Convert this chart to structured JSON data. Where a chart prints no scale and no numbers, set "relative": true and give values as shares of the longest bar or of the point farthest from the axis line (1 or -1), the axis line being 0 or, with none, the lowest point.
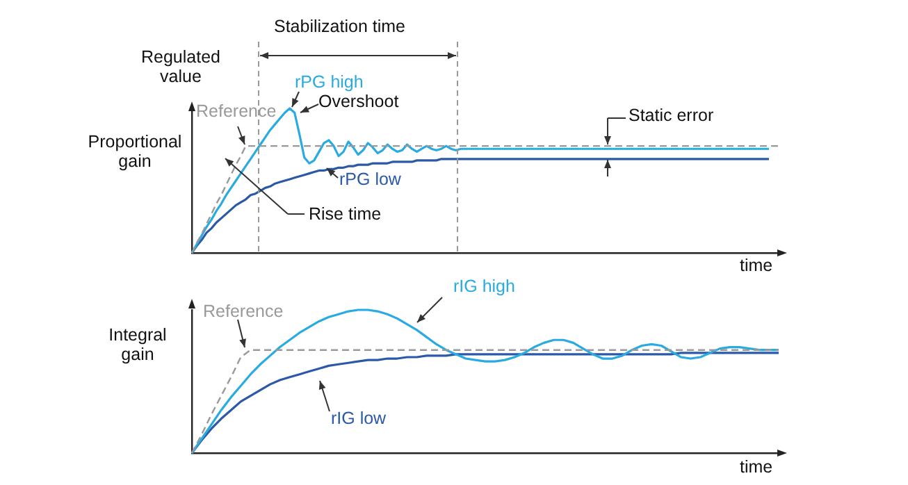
{
  "chart_data": [
    {
      "type": "line",
      "title": "Proportional gain",
      "ylabel": "Regulated value",
      "xlabel": "time",
      "relative": true,
      "marker": "none",
      "categories": [
        null,
        null,
        null,
        null,
        null,
        null,
        null,
        null,
        null,
        null,
        null,
        null,
        null,
        null,
        null,
        null,
        null,
        null,
        null,
        null,
        null,
        null,
        null,
        null,
        null,
        null,
        null,
        null,
        null,
        null,
        null,
        null,
        null,
        null,
        null,
        null,
        null,
        null,
        null,
        null,
        null,
        null,
        null,
        null,
        null,
        null,
        null,
        null,
        null,
        null,
        null,
        null,
        null,
        null,
        null,
        null,
        null,
        null,
        null,
        null,
        null,
        null,
        null,
        null,
        null,
        null,
        null,
        null,
        null,
        null,
        null,
        null,
        null,
        null,
        null,
        null,
        null,
        null,
        null,
        null,
        null,
        null,
        null,
        null,
        null,
        null,
        null,
        null,
        null,
        null,
        null,
        null,
        null,
        null,
        null,
        null,
        null,
        null,
        null,
        null,
        null,
        null,
        null,
        null,
        null,
        null,
        null,
        null,
        null,
        null,
        null,
        null,
        null,
        null,
        null,
        null,
        null,
        null,
        null,
        null,
        null
      ],
      "series": [
        {
          "name": "Reference",
          "color": "#999999",
          "line_style": "dashed",
          "values": [
            0,
            0.07,
            0.13,
            0.2,
            0.27,
            0.34,
            0.4,
            0.47,
            0.54,
            0.61,
            0.67,
            0.74,
            0.74,
            0.74,
            0.74,
            0.74,
            0.74,
            0.74,
            0.74,
            0.74,
            0.74,
            0.74,
            0.74,
            0.74,
            0.74,
            0.74,
            0.74,
            0.74,
            0.74,
            0.74,
            0.74,
            0.74,
            0.74,
            0.74,
            0.74,
            0.74,
            0.74,
            0.74,
            0.74,
            0.74,
            0.74,
            0.74,
            0.74,
            0.74,
            0.74,
            0.74,
            0.74,
            0.74,
            0.74,
            0.74,
            0.74,
            0.74,
            0.74,
            0.74,
            0.74,
            0.74,
            0.74,
            0.74,
            0.74,
            0.74,
            0.74,
            0.74,
            0.74,
            0.74,
            0.74,
            0.74,
            0.74,
            0.74,
            0.74,
            0.74,
            0.74,
            0.74,
            0.74,
            0.74,
            0.74,
            0.74,
            0.74,
            0.74,
            0.74,
            0.74,
            0.74,
            0.74,
            0.74,
            0.74,
            0.74,
            0.74,
            0.74,
            0.74,
            0.74,
            0.74,
            0.74,
            0.74,
            0.74,
            0.74,
            0.74,
            0.74,
            0.74,
            0.74,
            0.74,
            0.74,
            0.74,
            0.74,
            0.74,
            0.74,
            0.74,
            0.74,
            0.74,
            0.74,
            0.74,
            0.74,
            0.74,
            0.74,
            0.74,
            0.74,
            0.74,
            0.74,
            0.74,
            0.74,
            0.74,
            0.74,
            0.74
          ]
        },
        {
          "name": "rPG high",
          "color": "#29abe2",
          "line_style": "solid",
          "values": [
            0,
            0.06,
            0.12,
            0.18,
            0.23,
            0.29,
            0.34,
            0.4,
            0.45,
            0.5,
            0.55,
            0.6,
            0.65,
            0.7,
            0.75,
            0.8,
            0.85,
            0.89,
            0.93,
            0.97,
            1,
            0.97,
            0.82,
            0.66,
            0.62,
            0.64,
            0.7,
            0.76,
            0.78,
            0.74,
            0.67,
            0.7,
            0.77,
            0.73,
            0.68,
            0.71,
            0.76,
            0.73,
            0.69,
            0.71,
            0.75,
            0.72,
            0.7,
            0.71,
            0.75,
            0.72,
            0.7,
            0.72,
            0.74,
            0.72,
            0.71,
            0.72,
            0.74,
            0.72,
            0.71,
            0.72,
            0.72,
            0.72,
            0.72,
            0.72,
            0.72,
            0.72,
            0.72,
            0.72,
            0.72,
            0.72,
            0.72,
            0.72,
            0.72,
            0.72,
            0.72,
            0.72,
            0.72,
            0.72,
            0.72,
            0.72,
            0.72,
            0.72,
            0.72,
            0.72,
            0.72,
            0.72,
            0.72,
            0.72,
            0.72,
            0.72,
            0.72,
            0.72,
            0.72,
            0.72,
            0.72,
            0.72,
            0.72,
            0.72,
            0.72,
            0.72,
            0.72,
            0.72,
            0.72,
            0.72,
            0.72,
            0.72,
            0.72,
            0.72,
            0.72,
            0.72,
            0.72,
            0.72,
            0.72,
            0.72,
            0.72,
            0.72,
            0.72,
            0.72,
            0.72,
            0.72,
            0.72,
            0.72,
            0.72,
            null,
            null
          ]
        },
        {
          "name": "rPG low",
          "color": "#2b59a8",
          "line_style": "solid",
          "values": [
            0,
            0.05,
            0.09,
            0.14,
            0.17,
            0.21,
            0.24,
            0.27,
            0.3,
            0.33,
            0.35,
            0.37,
            0.4,
            0.41,
            0.43,
            0.45,
            0.46,
            0.48,
            0.49,
            0.5,
            0.51,
            0.52,
            0.53,
            0.54,
            0.55,
            0.56,
            0.57,
            0.57,
            0.58,
            0.58,
            0.59,
            0.59,
            0.6,
            0.6,
            0.61,
            0.61,
            0.61,
            0.62,
            0.62,
            0.62,
            0.62,
            0.63,
            0.63,
            0.63,
            0.63,
            0.63,
            0.64,
            0.64,
            0.64,
            0.64,
            0.64,
            0.65,
            0.65,
            0.65,
            0.65,
            0.65,
            0.65,
            0.65,
            0.65,
            0.65,
            0.65,
            0.65,
            0.65,
            0.65,
            0.65,
            0.65,
            0.65,
            0.65,
            0.65,
            0.65,
            0.65,
            0.65,
            0.65,
            0.65,
            0.65,
            0.65,
            0.65,
            0.65,
            0.65,
            0.65,
            0.65,
            0.65,
            0.65,
            0.65,
            0.65,
            0.65,
            0.65,
            0.65,
            0.65,
            0.65,
            0.65,
            0.65,
            0.65,
            0.65,
            0.65,
            0.65,
            0.65,
            0.65,
            0.65,
            0.65,
            0.65,
            0.65,
            0.65,
            0.65,
            0.65,
            0.65,
            0.65,
            0.65,
            0.65,
            0.65,
            0.65,
            0.65,
            0.65,
            0.65,
            0.65,
            0.65,
            0.65,
            0.65,
            0.65,
            null,
            null
          ]
        }
      ],
      "annotations": [
        "Stabilization time",
        "Overshoot",
        "Rise time",
        "Static error"
      ]
    },
    {
      "type": "line",
      "title": "Integral gain",
      "xlabel": "time",
      "relative": true,
      "marker": "none",
      "categories": [
        null,
        null,
        null,
        null,
        null,
        null,
        null,
        null,
        null,
        null,
        null,
        null,
        null,
        null,
        null,
        null,
        null,
        null,
        null,
        null,
        null,
        null,
        null,
        null,
        null,
        null,
        null,
        null,
        null,
        null,
        null,
        null,
        null,
        null,
        null,
        null,
        null,
        null,
        null,
        null,
        null,
        null,
        null,
        null,
        null,
        null,
        null,
        null,
        null,
        null,
        null,
        null,
        null,
        null,
        null,
        null,
        null,
        null,
        null,
        null,
        null
      ],
      "series": [
        {
          "name": "Reference",
          "color": "#999999",
          "line_style": "dashed",
          "values": [
            0,
            0.13,
            0.27,
            0.4,
            0.53,
            0.67,
            0.72,
            0.72,
            0.72,
            0.72,
            0.72,
            0.72,
            0.72,
            0.72,
            0.72,
            0.72,
            0.72,
            0.72,
            0.72,
            0.72,
            0.72,
            0.72,
            0.72,
            0.72,
            0.72,
            0.72,
            0.72,
            0.72,
            0.72,
            0.72,
            0.72,
            0.72,
            0.72,
            0.72,
            0.72,
            0.72,
            0.72,
            0.72,
            0.72,
            0.72,
            0.72,
            0.72,
            0.72,
            0.72,
            0.72,
            0.72,
            0.72,
            0.72,
            0.72,
            0.72,
            0.72,
            0.72,
            0.72,
            0.72,
            0.72,
            0.72,
            0.72,
            0.72,
            0.72,
            0.72,
            0.72
          ]
        },
        {
          "name": "rIG high",
          "color": "#29abe2",
          "line_style": "solid",
          "values": [
            0,
            0.1,
            0.2,
            0.3,
            0.39,
            0.47,
            0.55,
            0.62,
            0.68,
            0.74,
            0.79,
            0.84,
            0.88,
            0.92,
            0.95,
            0.97,
            0.99,
            1,
            1,
            0.99,
            0.97,
            0.94,
            0.9,
            0.86,
            0.81,
            0.76,
            0.72,
            0.69,
            0.66,
            0.65,
            0.64,
            0.64,
            0.65,
            0.67,
            0.7,
            0.74,
            0.77,
            0.79,
            0.79,
            0.77,
            0.73,
            0.69,
            0.66,
            0.66,
            0.68,
            0.72,
            0.75,
            0.76,
            0.75,
            0.71,
            0.67,
            0.66,
            0.67,
            0.7,
            0.73,
            0.74,
            0.74,
            0.73,
            0.72,
            0.72,
            0.72
          ]
        },
        {
          "name": "rIG low",
          "color": "#2b59a8",
          "line_style": "solid",
          "values": [
            0,
            0.09,
            0.17,
            0.24,
            0.3,
            0.36,
            0.4,
            0.44,
            0.48,
            0.51,
            0.53,
            0.55,
            0.57,
            0.59,
            0.61,
            0.62,
            0.63,
            0.64,
            0.65,
            0.65,
            0.66,
            0.66,
            0.67,
            0.67,
            0.68,
            0.68,
            0.68,
            0.69,
            0.69,
            0.69,
            0.69,
            0.69,
            0.69,
            0.69,
            0.69,
            0.69,
            0.69,
            0.69,
            0.69,
            0.69,
            0.69,
            0.69,
            0.69,
            0.69,
            0.69,
            0.69,
            0.69,
            0.69,
            0.69,
            0.69,
            0.7,
            0.7,
            0.7,
            0.7,
            0.7,
            0.7,
            0.7,
            0.7,
            0.7,
            0.7,
            0.7
          ]
        }
      ]
    }
  ]
}
